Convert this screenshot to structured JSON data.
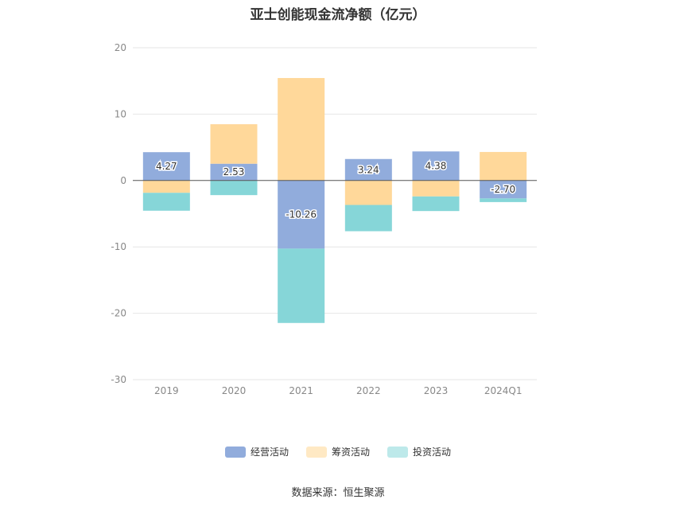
{
  "chart_data": {
    "type": "bar",
    "stacked": true,
    "title": "亚士创能现金流净额（亿元）",
    "categories": [
      "2019",
      "2020",
      "2021",
      "2022",
      "2023",
      "2024Q1"
    ],
    "yticks": [
      "20",
      "10",
      "0",
      "-10",
      "-20",
      "-30"
    ],
    "ylim": [
      -30,
      20
    ],
    "grid": true,
    "legend_position": "bottom",
    "series": [
      {
        "name": "经营活动",
        "color": "#91acdc",
        "values": [
          4.27,
          2.53,
          -10.26,
          3.24,
          4.38,
          -2.7
        ],
        "labels": [
          "4.27",
          "2.53",
          "-10.26",
          "3.24",
          "4.38",
          "-2.70"
        ]
      },
      {
        "name": "筹资活动",
        "color": "#ffd89a",
        "values": [
          -1.85,
          5.95,
          15.44,
          -3.68,
          -2.4,
          4.3
        ]
      },
      {
        "name": "投资活动",
        "color": "#86d6d8",
        "values": [
          -2.7,
          -2.2,
          -11.2,
          -3.96,
          -2.2,
          -0.55
        ]
      }
    ]
  },
  "legend": [
    {
      "label": "经营活动",
      "color": "#91acdc"
    },
    {
      "label": "筹资活动",
      "color": "#ffe9c4"
    },
    {
      "label": "投资活动",
      "color": "#bde9ea"
    }
  ],
  "source": "数据来源：恒生聚源"
}
